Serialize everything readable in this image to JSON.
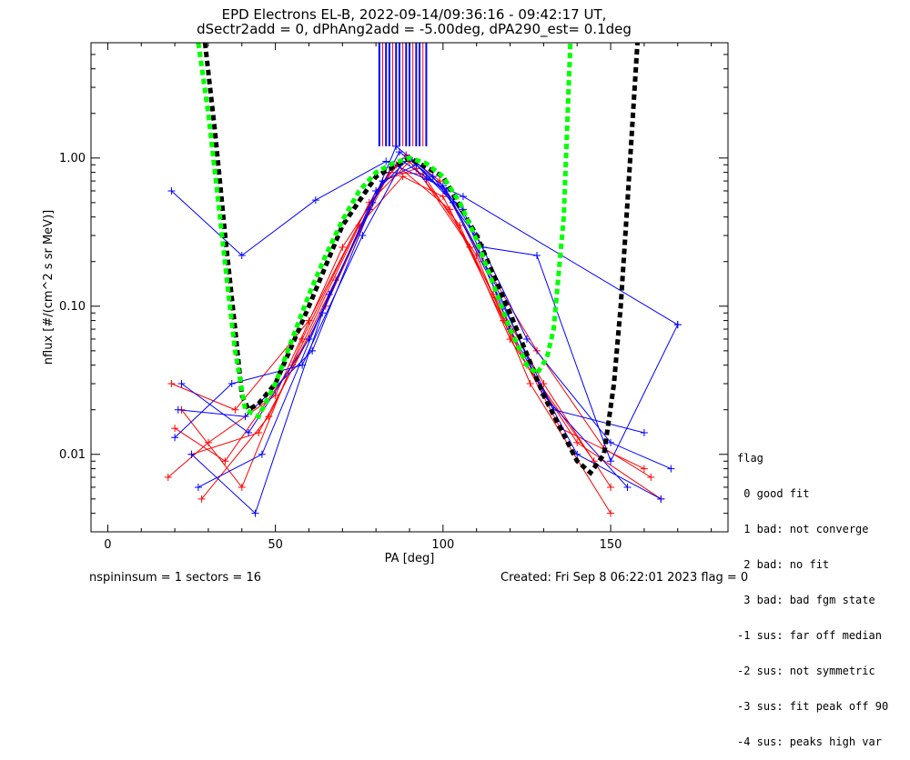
{
  "header": {
    "title_line1": "EPD Electrons EL-B, 2022-09-14/09:36:16 - 09:42:17 UT,",
    "title_line2": "dSectr2add = 0, dPhAng2add = -5.00deg, dPA290_est=   0.1deg"
  },
  "flag_legend": {
    "title": "flag",
    "items": [
      " 0 good fit",
      " 1 bad: not converge",
      " 2 bad: no fit",
      " 3 bad: bad fgm state",
      "-1 sus: far off median",
      "-2 sus: not symmetric",
      "-3 sus: fit peak off 90",
      "-4 sus: peaks high var"
    ]
  },
  "footer": {
    "left": "nspininsum =  1  sectors = 16",
    "right": "Created: Fri Sep  8 06:22:01 2023   flag = 0"
  },
  "colors": {
    "series_a": "#ff0000",
    "series_b": "#0000ff",
    "fit_green": "#00ff00",
    "fit_black": "#000000"
  },
  "chart_data": {
    "type": "line",
    "xlabel": "PA [deg]",
    "ylabel": "nflux [#/(cm^2 s sr MeV)]",
    "xlim": [
      -5,
      185
    ],
    "ylim": [
      0.003,
      6.0
    ],
    "yscale": "log",
    "xticks": [
      0,
      50,
      100,
      150
    ],
    "yticks": [
      {
        "value": 0.01,
        "label": "0.01"
      },
      {
        "value": 0.1,
        "label": "0.10"
      },
      {
        "value": 1.0,
        "label": "1.00"
      }
    ],
    "series_red_profiles": [
      {
        "x": [
          20,
          35,
          55,
          75,
          88,
          100,
          115,
          130,
          150
        ],
        "y": [
          0.015,
          0.009,
          0.04,
          0.35,
          0.75,
          0.55,
          0.12,
          0.03,
          0.006
        ]
      },
      {
        "x": [
          18,
          30,
          50,
          70,
          86,
          102,
          118,
          135,
          160
        ],
        "y": [
          0.007,
          0.012,
          0.025,
          0.25,
          0.9,
          0.45,
          0.08,
          0.015,
          0.008
        ]
      },
      {
        "x": [
          22,
          40,
          58,
          78,
          90,
          105,
          120,
          140,
          165
        ],
        "y": [
          0.02,
          0.006,
          0.06,
          0.5,
          0.95,
          0.35,
          0.06,
          0.012,
          0.005
        ]
      },
      {
        "x": [
          25,
          45,
          65,
          82,
          92,
          108,
          125,
          145
        ],
        "y": [
          0.01,
          0.014,
          0.1,
          0.7,
          0.85,
          0.25,
          0.04,
          0.009
        ]
      },
      {
        "x": [
          19,
          38,
          60,
          80,
          89,
          99,
          112,
          128,
          148,
          162
        ],
        "y": [
          0.03,
          0.02,
          0.08,
          0.6,
          1.05,
          0.7,
          0.2,
          0.05,
          0.011,
          0.007
        ]
      },
      {
        "x": [
          28,
          48,
          68,
          84,
          94,
          110,
          126,
          150
        ],
        "y": [
          0.005,
          0.018,
          0.15,
          0.8,
          0.78,
          0.22,
          0.03,
          0.004
        ]
      }
    ],
    "series_blue_profiles": [
      {
        "x": [
          19,
          40,
          62,
          83,
          95,
          106,
          170
        ],
        "y": [
          0.6,
          0.22,
          0.52,
          0.95,
          0.72,
          0.55,
          0.075
        ]
      },
      {
        "x": [
          22,
          42,
          60,
          78,
          87,
          100,
          110,
          125,
          150,
          168
        ],
        "y": [
          0.03,
          0.014,
          0.06,
          0.45,
          1.1,
          0.65,
          0.3,
          0.06,
          0.012,
          0.008
        ]
      },
      {
        "x": [
          25,
          44,
          64,
          80,
          90,
          103,
          115,
          130,
          155
        ],
        "y": [
          0.01,
          0.004,
          0.09,
          0.6,
          1.0,
          0.5,
          0.15,
          0.025,
          0.006
        ]
      },
      {
        "x": [
          20,
          37,
          58,
          76,
          88,
          101,
          118,
          133,
          160
        ],
        "y": [
          0.013,
          0.03,
          0.04,
          0.3,
          0.95,
          0.6,
          0.1,
          0.02,
          0.014
        ]
      },
      {
        "x": [
          27,
          46,
          66,
          82,
          92,
          106,
          120,
          140,
          165
        ],
        "y": [
          0.006,
          0.01,
          0.12,
          0.7,
          0.9,
          0.45,
          0.07,
          0.01,
          0.005
        ]
      },
      {
        "x": [
          21,
          41,
          61,
          79,
          86,
          97,
          112,
          128,
          150,
          170
        ],
        "y": [
          0.02,
          0.018,
          0.05,
          0.5,
          1.2,
          0.75,
          0.25,
          0.22,
          0.009,
          0.075
        ]
      }
    ],
    "fit_green": {
      "x": [
        27,
        30,
        33,
        36,
        38,
        41,
        45,
        50,
        55,
        60,
        65,
        70,
        75,
        80,
        85,
        90,
        95,
        100,
        105,
        110,
        115,
        120,
        125,
        128,
        131,
        133,
        136,
        138
      ],
      "y": [
        6.0,
        2.0,
        0.5,
        0.12,
        0.05,
        0.02,
        0.018,
        0.03,
        0.06,
        0.12,
        0.22,
        0.38,
        0.6,
        0.8,
        0.92,
        1.0,
        0.92,
        0.75,
        0.5,
        0.28,
        0.14,
        0.07,
        0.04,
        0.035,
        0.045,
        0.07,
        0.4,
        6.0
      ]
    },
    "fit_black": {
      "x": [
        29,
        32,
        35,
        38,
        40,
        42,
        45,
        50,
        60,
        70,
        80,
        90,
        100,
        110,
        120,
        130,
        140,
        144,
        148,
        151,
        153,
        155,
        158
      ],
      "y": [
        6.0,
        1.5,
        0.3,
        0.07,
        0.025,
        0.02,
        0.022,
        0.03,
        0.1,
        0.35,
        0.75,
        1.0,
        0.75,
        0.3,
        0.09,
        0.025,
        0.009,
        0.0075,
        0.01,
        0.03,
        0.1,
        0.5,
        6.0
      ]
    },
    "vertical_lines_red_x": [
      82,
      85,
      88,
      91,
      94
    ],
    "vertical_lines_blue_x": [
      81,
      83,
      84,
      86,
      87,
      89,
      90,
      92,
      93,
      95
    ],
    "vertical_lines_top_y": 6.0,
    "vertical_lines_bottom_y": 1.2
  }
}
